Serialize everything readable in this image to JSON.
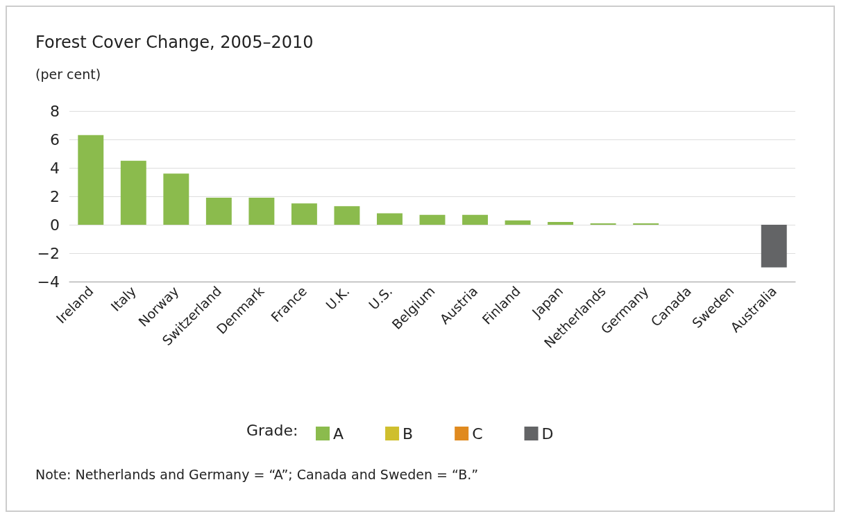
{
  "chart_data": {
    "type": "bar",
    "title": "Forest Cover Change, 2005–2010",
    "subtitle": "(per cent)",
    "legend_title": "Grade:",
    "categories": [
      "Ireland",
      "Italy",
      "Norway",
      "Switzerland",
      "Denmark",
      "France",
      "U.K.",
      "U.S.",
      "Belgium",
      "Austria",
      "Finland",
      "Japan",
      "Netherlands",
      "Germany",
      "Canada",
      "Sweden",
      "Australia"
    ],
    "series": [
      {
        "name": "A",
        "color": "#8bbb4d",
        "values": [
          6.3,
          4.5,
          3.6,
          1.9,
          1.9,
          1.5,
          1.3,
          0.8,
          0.7,
          0.7,
          0.3,
          0.2,
          0.1,
          0.1,
          null,
          null,
          null
        ]
      },
      {
        "name": "B",
        "color": "#cfbf2e",
        "values": [
          null,
          null,
          null,
          null,
          null,
          null,
          null,
          null,
          null,
          null,
          null,
          null,
          null,
          null,
          0,
          0,
          null
        ]
      },
      {
        "name": "C",
        "color": "#e08a1f",
        "values": [
          null,
          null,
          null,
          null,
          null,
          null,
          null,
          null,
          null,
          null,
          null,
          null,
          null,
          null,
          null,
          null,
          null
        ]
      },
      {
        "name": "D",
        "color": "#636466",
        "values": [
          null,
          null,
          null,
          null,
          null,
          null,
          null,
          null,
          null,
          null,
          null,
          null,
          null,
          null,
          null,
          null,
          -3.0
        ]
      }
    ],
    "stacked": true,
    "ylim": [
      -4,
      8
    ],
    "yticks": [
      -4,
      -2,
      0,
      2,
      4,
      6,
      8
    ],
    "grid": "y",
    "legend": "bottom",
    "annotations": [
      "Note: Netherlands and Germany = “A”; Canada and Sweden = “B.”"
    ]
  }
}
